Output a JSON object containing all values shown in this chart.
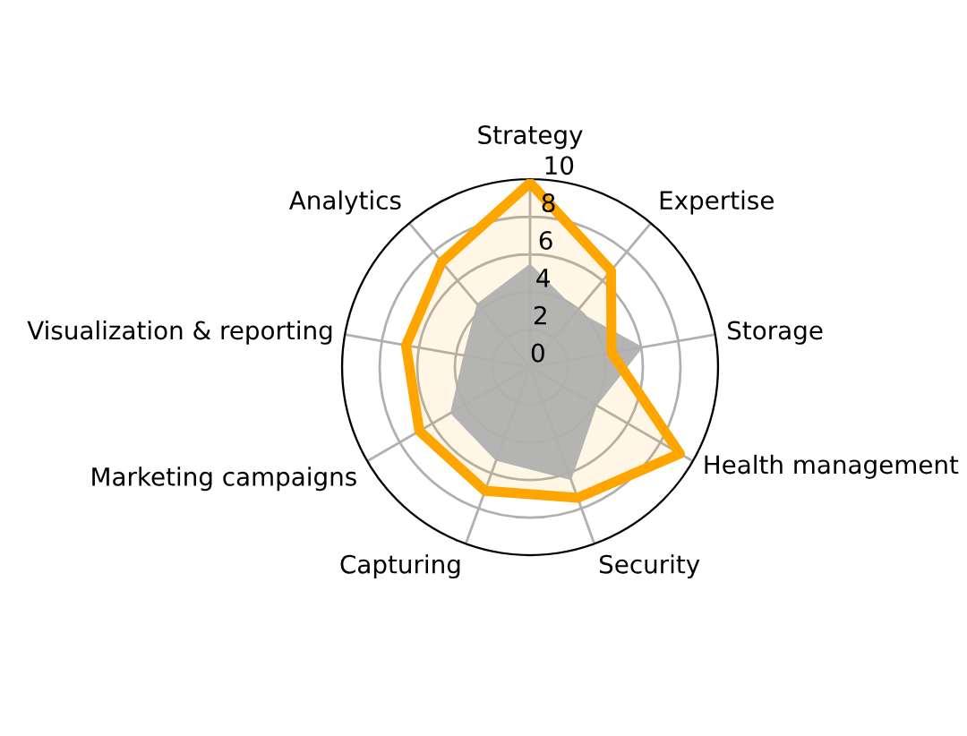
{
  "chart_data": {
    "type": "radar",
    "categories": [
      "Strategy",
      "Expertise",
      "Storage",
      "Health management",
      "Security",
      "Capturing",
      "Marketing campaigns",
      "Visualization & reporting",
      "Analytics"
    ],
    "series": [
      {
        "type": "area",
        "color": "#b0b0b0",
        "values": [
          5.5,
          3.9,
          6.1,
          4.1,
          6.4,
          5.3,
          4.9,
          3.6,
          4.4
        ]
      },
      {
        "type": "radar",
        "color": "#ffa500",
        "values": [
          9.8,
          6.7,
          4.4,
          9.2,
          7.4,
          7.0,
          6.8,
          6.7,
          7.3
        ]
      }
    ],
    "ylim": [
      0,
      10
    ],
    "yticks": [
      0,
      2,
      4,
      6,
      8,
      10
    ],
    "grid": true
  }
}
